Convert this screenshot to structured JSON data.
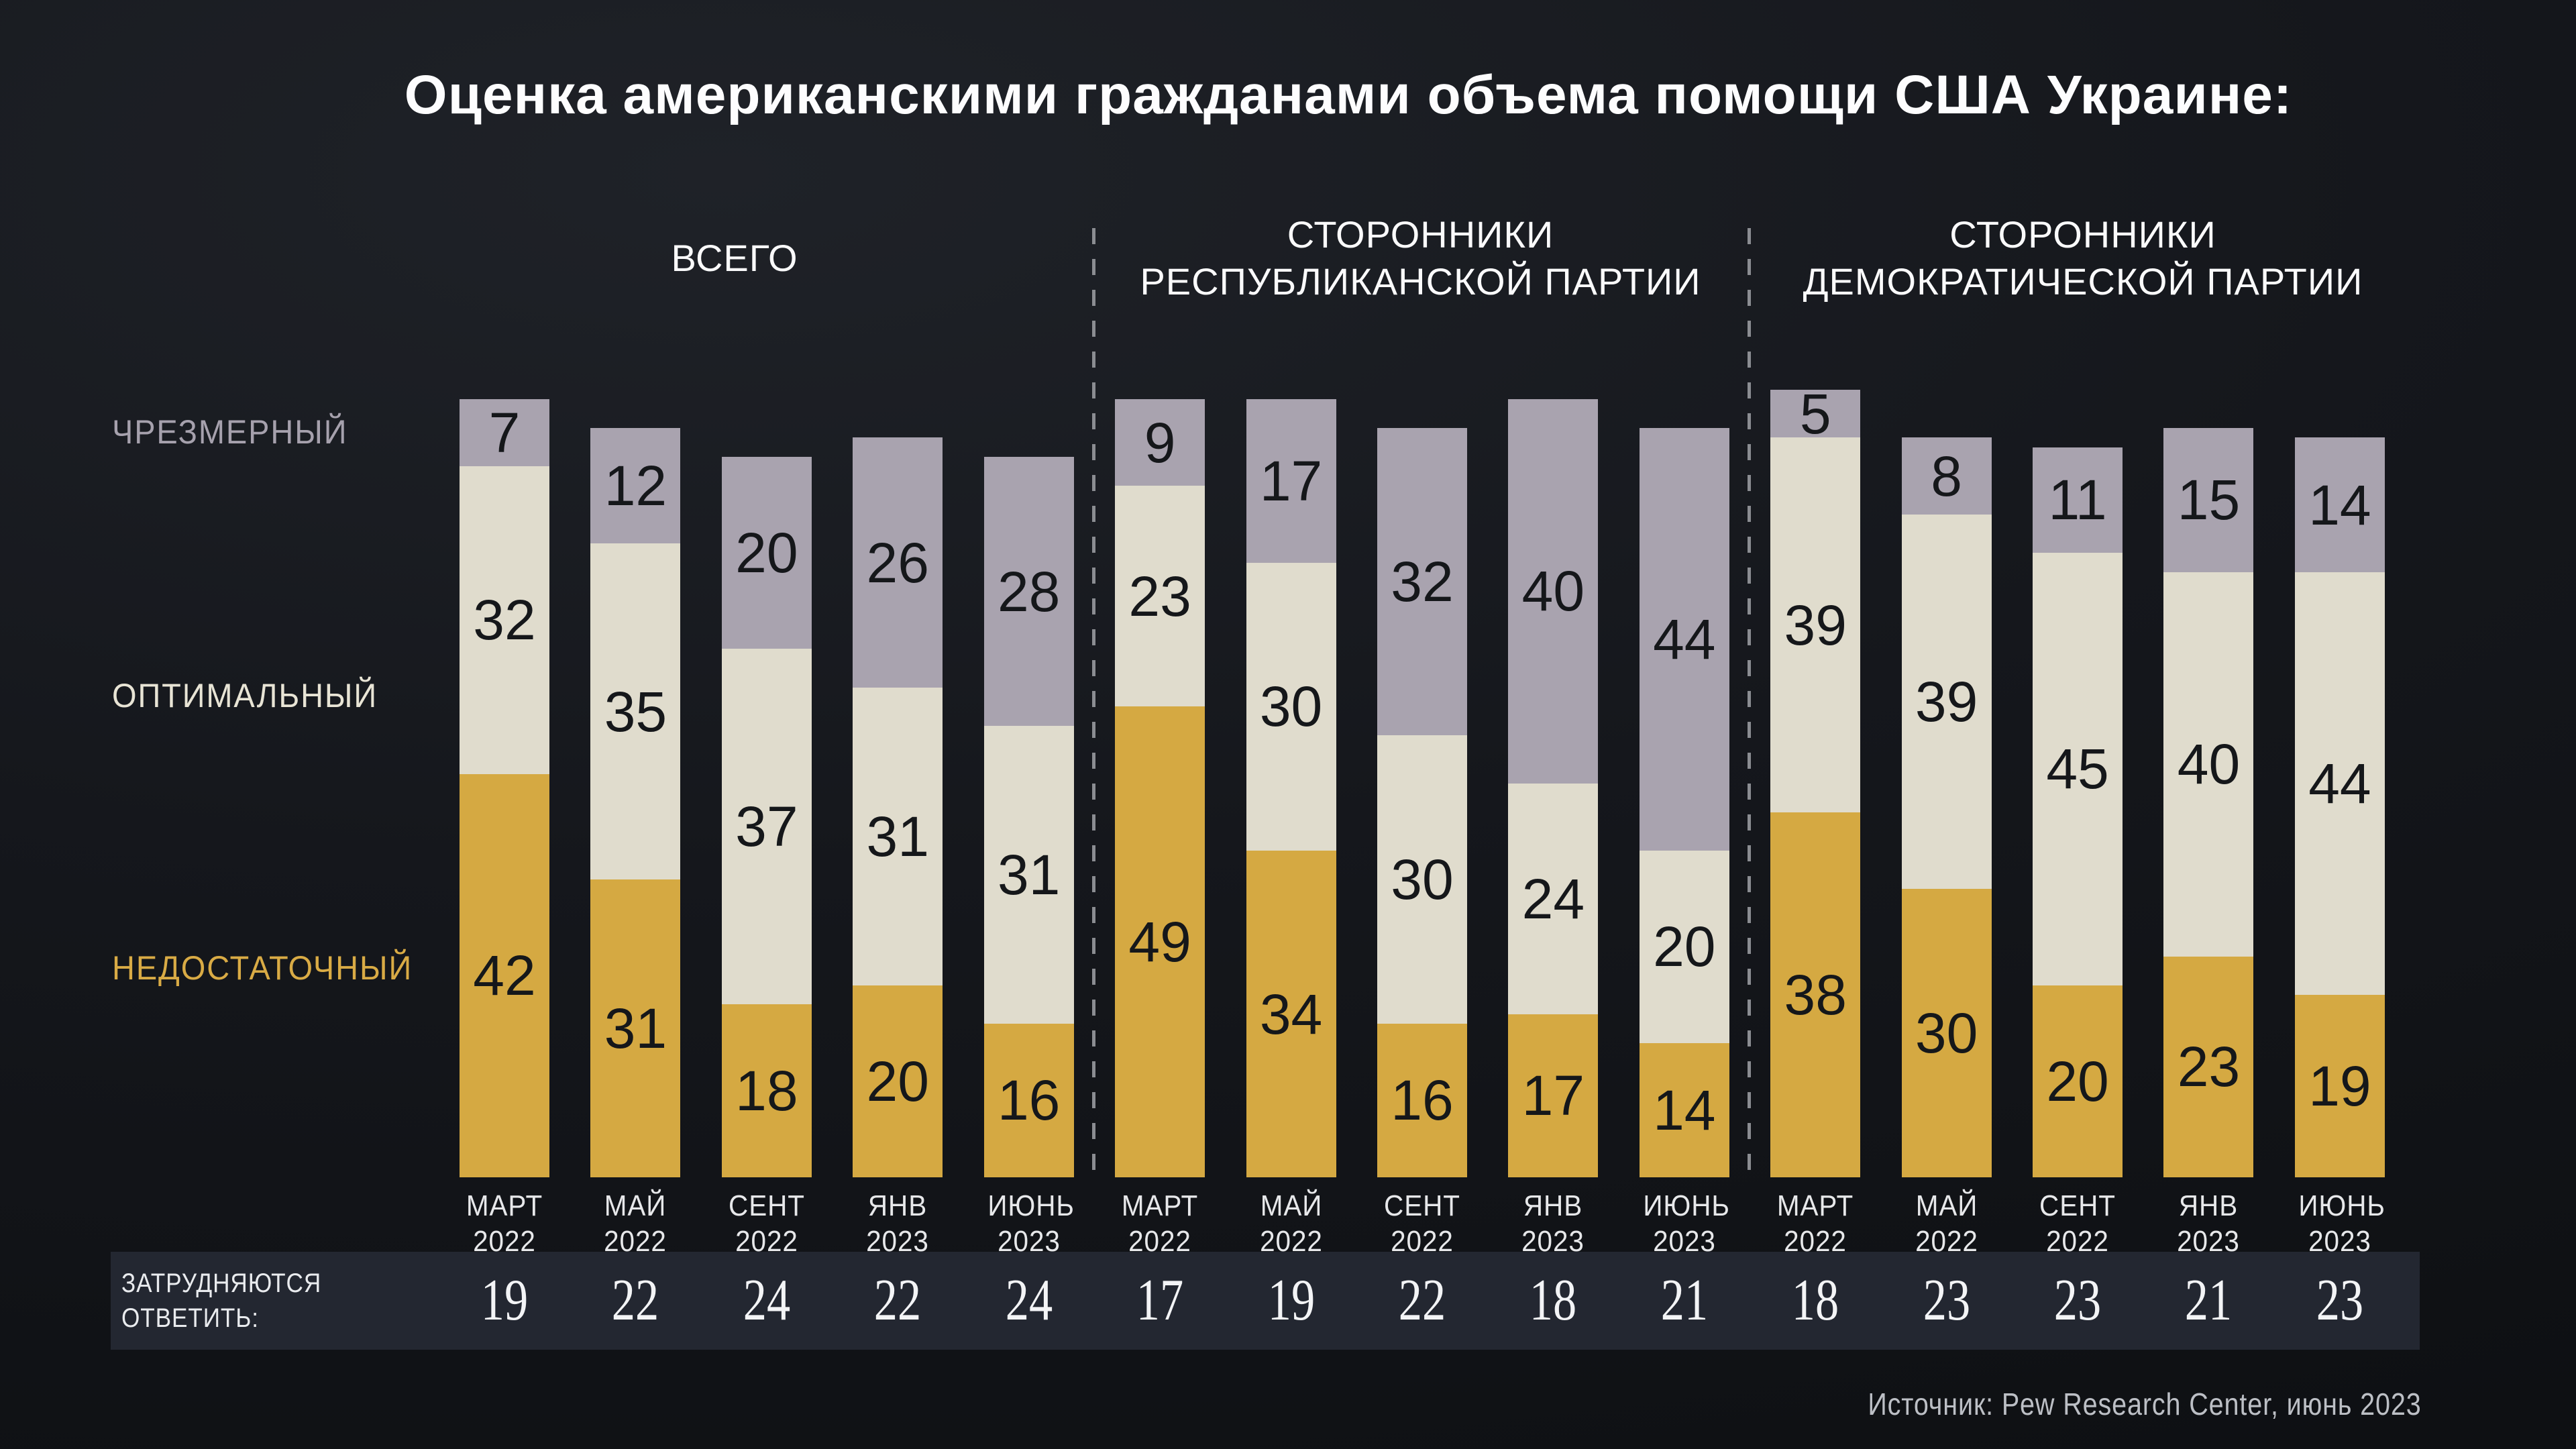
{
  "title": "Оценка американскими гражданами объема помощи США Украине:",
  "source": "Источник: Pew Research Center, июнь 2023",
  "colors": {
    "background_dark": "#15171c",
    "band_background": "#232731",
    "excessive": "#a9a3af",
    "optimal": "#e0dccd",
    "insufficient": "#d5a942",
    "number_dark": "#15171a",
    "text_light": "#fafafb"
  },
  "chart_data": {
    "type": "bar",
    "stacked": true,
    "unit": "percent",
    "ylim": [
      0,
      100
    ],
    "legend_position": "left",
    "grid": false,
    "categories": [
      "МАРТ\n2022",
      "МАЙ\n2022",
      "СЕНТ\n2022",
      "ЯНВ\n2023",
      "ИЮНЬ\n2023"
    ],
    "segments": [
      {
        "key": "excessive",
        "label": "ЧРЕЗМЕРНЫЙ",
        "color": "#a9a3af"
      },
      {
        "key": "optimal",
        "label": "ОПТИМАЛЬНЫЙ",
        "color": "#e0dccd"
      },
      {
        "key": "insufficient",
        "label": "НЕДОСТАТОЧНЫЙ",
        "color": "#d5a942"
      }
    ],
    "dont_know_label": "ЗАТРУДНЯЮТСЯ\nОТВЕТИТЬ:",
    "groups": [
      {
        "label": "ВСЕГО",
        "excessive": [
          7,
          12,
          20,
          26,
          28
        ],
        "optimal": [
          32,
          35,
          37,
          31,
          31
        ],
        "insufficient": [
          42,
          31,
          18,
          20,
          16
        ],
        "dont_know": [
          19,
          22,
          24,
          22,
          24
        ]
      },
      {
        "label": "СТОРОННИКИ\nРЕСПУБЛИКАНСКОЙ ПАРТИИ",
        "excessive": [
          9,
          17,
          32,
          40,
          44
        ],
        "optimal": [
          23,
          30,
          30,
          24,
          20
        ],
        "insufficient": [
          49,
          34,
          16,
          17,
          14
        ],
        "dont_know": [
          17,
          19,
          22,
          18,
          21
        ]
      },
      {
        "label": "СТОРОННИКИ\nДЕМОКРАТИЧЕСКОЙ ПАРТИИ",
        "excessive": [
          5,
          8,
          11,
          15,
          14
        ],
        "optimal": [
          39,
          39,
          45,
          40,
          44
        ],
        "insufficient": [
          38,
          30,
          20,
          23,
          19
        ],
        "dont_know": [
          18,
          23,
          23,
          21,
          23
        ]
      }
    ]
  }
}
